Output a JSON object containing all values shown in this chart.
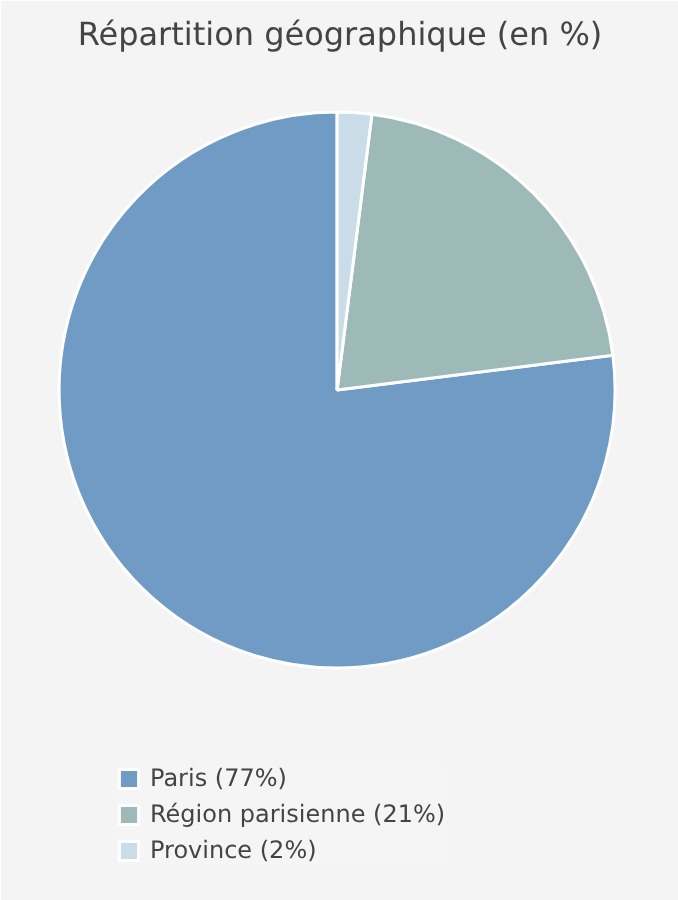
{
  "chart_data": {
    "type": "pie",
    "title": "Répartition géographique (en %)",
    "categories": [
      "Paris (77%)",
      "Région parisienne (21%)",
      "Province (2%)"
    ],
    "values": [
      77,
      21,
      2
    ],
    "colors": [
      "#6f9bc4",
      "#9dbab8",
      "#c9dce8"
    ],
    "legend": "bottom"
  }
}
